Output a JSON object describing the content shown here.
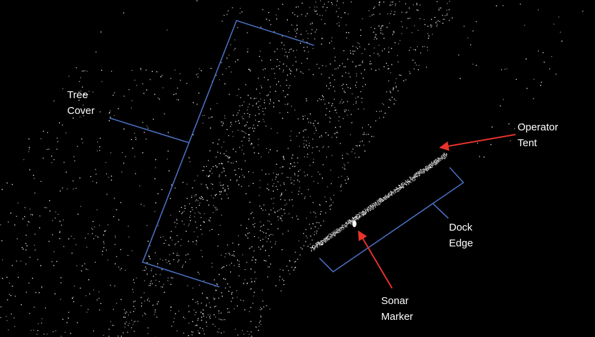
{
  "labels": [
    {
      "lines": [
        "Tree",
        "Cover"
      ]
    },
    {
      "lines": [
        "Operator",
        "Tent"
      ]
    },
    {
      "lines": [
        "Dock",
        "Edge"
      ]
    },
    {
      "lines": [
        "Sonar",
        "Marker"
      ]
    }
  ]
}
